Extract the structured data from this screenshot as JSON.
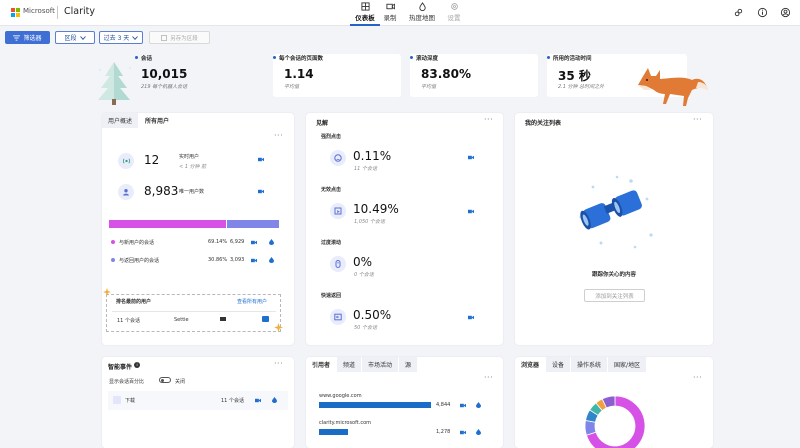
{
  "header": {
    "ms_text": "Microsoft",
    "product": "Clarity",
    "nav": [
      {
        "label": "仪表板",
        "icon": "dashboard-icon"
      },
      {
        "label": "录制",
        "icon": "recording-icon"
      },
      {
        "label": "热度地图",
        "icon": "heatmap-icon"
      },
      {
        "label": "设置",
        "icon": "settings-icon"
      }
    ],
    "right_icons": [
      "share-icon",
      "info-icon",
      "account-icon"
    ]
  },
  "colors": {
    "accent": "#3f6fd4",
    "magenta": "#d651e6",
    "violet": "#7f86e8",
    "blue_bar": "#1a6dc7"
  },
  "toolbar": {
    "filter_label": "筛选器",
    "segment_label": "区段",
    "date_label": "过去 3 天",
    "save_label": "另存为区段"
  },
  "kpis": [
    {
      "label": "会话",
      "value": "10,015",
      "sub": "219 每个机器人会话",
      "dot": "#2563c9"
    },
    {
      "label": "每个会话的页面数",
      "value": "1.14",
      "sub": "平均值",
      "dot": "#2563c9"
    },
    {
      "label": "滚动深度",
      "value": "83.80%",
      "sub": "平均值",
      "dot": "#2563c9"
    },
    {
      "label": "所用的活动时间",
      "value": "35 秒",
      "sub": "2.1 分钟 总时间之外",
      "dot": "#2563c9"
    }
  ],
  "overview": {
    "tab_active": "用户概述",
    "tab_other": "所有用户",
    "live_value": "12",
    "live_label": "实时用户",
    "live_sub": "< 1 分钟 前",
    "unique_value": "8,983",
    "unique_label": "唯一用户数",
    "new_label": "与新用户的会话",
    "new_pct": "69.14%",
    "new_count": "6,929",
    "new_share": 0.6914,
    "return_label": "与返回用户的会话",
    "return_pct": "30.86%",
    "return_count": "3,093",
    "top_users_label": "排名最前的用户",
    "see_all_label": "查看所有用户",
    "row_sessions": "11 个会话",
    "row_name": "Settie"
  },
  "insights": {
    "title": "见解",
    "items": [
      {
        "label": "强烈点击",
        "value": "0.11%",
        "sub": "11 个会话",
        "icon": "rage-click-icon"
      },
      {
        "label": "无效点击",
        "value": "10.49%",
        "sub": "1,050 个会话",
        "icon": "dead-click-icon"
      },
      {
        "label": "过度滚动",
        "value": "0%",
        "sub": "0 个会话",
        "icon": "excessive-scroll-icon"
      },
      {
        "label": "快速返回",
        "value": "0.50%",
        "sub": "50 个会话",
        "icon": "quick-back-icon"
      }
    ]
  },
  "watchlist": {
    "title": "我的关注列表",
    "message": "跟踪你关心的内容",
    "button": "添加到关注列表"
  },
  "smart_events": {
    "title": "智能事件",
    "toggle_label": "显示会话百分比",
    "toggle_state": "关闭",
    "row_label": "下载",
    "row_count": "11 个会话"
  },
  "referrers": {
    "tabs": [
      "引用者",
      "频道",
      "市场活动",
      "源"
    ],
    "rows": [
      {
        "name": "www.google.com",
        "count": "4,844",
        "share": 1.0
      },
      {
        "name": "clarity.microsoft.com",
        "count": "1,278",
        "share": 0.26
      }
    ]
  },
  "browsers": {
    "tabs": [
      "浏览器",
      "设备",
      "操作系统",
      "国家/地区"
    ],
    "donut": [
      {
        "value": 0.7,
        "color": "#d651e6"
      },
      {
        "value": 0.08,
        "color": "#7f86e8"
      },
      {
        "value": 0.06,
        "color": "#2f86c9"
      },
      {
        "value": 0.05,
        "color": "#3fb7a8"
      },
      {
        "value": 0.04,
        "color": "#f0a040"
      },
      {
        "value": 0.07,
        "color": "#8b5fd0"
      }
    ]
  }
}
